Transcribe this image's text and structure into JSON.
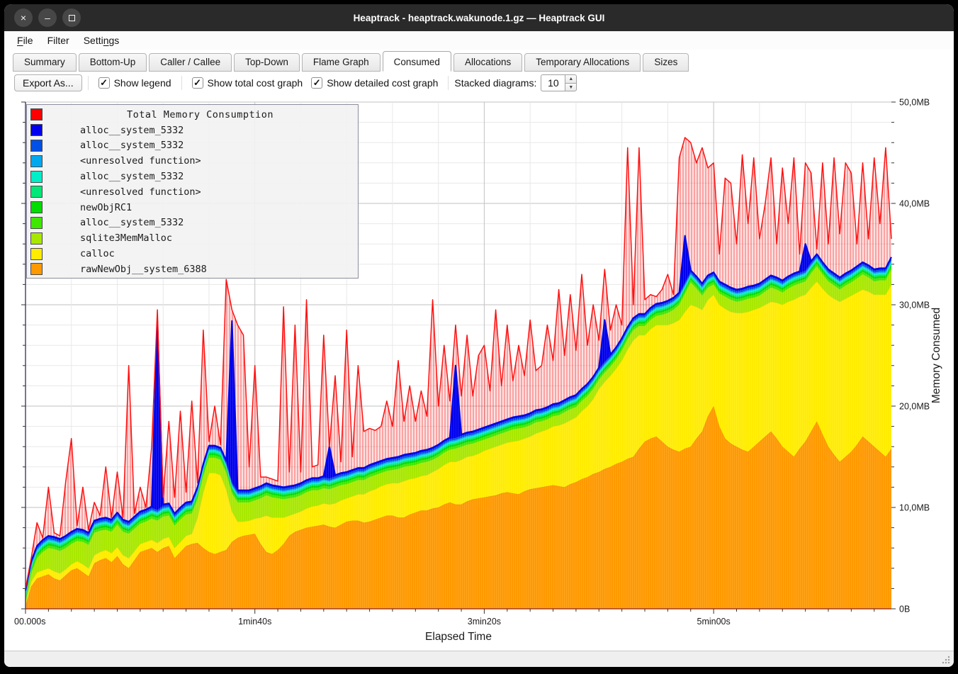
{
  "window": {
    "title": "Heaptrack - heaptrack.wakunode.1.gz — Heaptrack GUI",
    "controls": {
      "close": "×",
      "minimize": "–",
      "maximize": ""
    }
  },
  "menu": {
    "items": [
      {
        "label": "File",
        "underline": 0
      },
      {
        "label": "Filter",
        "underline": -1
      },
      {
        "label": "Settings",
        "underline": 5
      }
    ]
  },
  "tabs": {
    "items": [
      "Summary",
      "Bottom-Up",
      "Caller / Callee",
      "Top-Down",
      "Flame Graph",
      "Consumed",
      "Allocations",
      "Temporary Allocations",
      "Sizes"
    ],
    "active": "Consumed"
  },
  "toolbar": {
    "export_label": "Export As...",
    "checkboxes": [
      {
        "label": "Show legend",
        "checked": true
      },
      {
        "label": "Show total cost graph",
        "checked": true
      },
      {
        "label": "Show detailed cost graph",
        "checked": true
      }
    ],
    "stacked_label": "Stacked diagrams:",
    "stacked_value": "10"
  },
  "chart_data": {
    "type": "area",
    "title": "Total Memory Consumption",
    "xlabel": "Elapsed Time",
    "ylabel": "Memory Consumed",
    "grid": true,
    "legend_position": "top-left",
    "x_start": 0,
    "x_step_s": 2.5,
    "n": 152,
    "xlim_s": [
      0,
      377.5
    ],
    "ylim_mb": [
      0,
      50
    ],
    "y_ticks": [
      {
        "label": "0B",
        "mb": 0
      },
      {
        "label": "10,0MB",
        "mb": 10
      },
      {
        "label": "20,0MB",
        "mb": 20
      },
      {
        "label": "30,0MB",
        "mb": 30
      },
      {
        "label": "40,0MB",
        "mb": 40
      },
      {
        "label": "50,0MB",
        "mb": 50
      }
    ],
    "y_minor_step_mb": 2,
    "x_ticks": [
      {
        "label": "00.000s",
        "t": 0
      },
      {
        "label": "1min40s",
        "t": 100
      },
      {
        "label": "3min20s",
        "t": 200
      },
      {
        "label": "5min00s",
        "t": 300
      }
    ],
    "x_minor_step_s": 10,
    "x_grid_step_s": 20,
    "total_series": {
      "name": "Total Memory Consumption",
      "color": "#ff0000",
      "values_mb": [
        2.0,
        5.0,
        8.5,
        7.0,
        12.0,
        7.5,
        7.2,
        12.5,
        16.8,
        8.2,
        12.0,
        7.8,
        10.5,
        9.2,
        14.0,
        9.0,
        13.5,
        9.0,
        24.0,
        9.4,
        12.0,
        10.0,
        16.0,
        29.5,
        11.0,
        18.5,
        11.0,
        19.5,
        11.5,
        20.5,
        12.4,
        27.5,
        16.5,
        20.0,
        16.2,
        32.5,
        29.5,
        28.0,
        27.0,
        14.0,
        24.0,
        13.0,
        13.0,
        12.8,
        12.6,
        29.8,
        13.5,
        28.0,
        13.5,
        30.5,
        14.0,
        14.2,
        27.0,
        16.0,
        23.0,
        14.5,
        27.5,
        15.0,
        24.0,
        17.5,
        17.8,
        17.6,
        18.0,
        20.5,
        18.0,
        24.5,
        18.5,
        22.0,
        18.5,
        21.5,
        19.0,
        30.5,
        20.0,
        26.0,
        20.5,
        28.0,
        21.0,
        27.0,
        21.0,
        25.0,
        26.0,
        21.5,
        29.5,
        22.0,
        28.0,
        22.5,
        26.0,
        23.0,
        28.5,
        23.5,
        24.0,
        28.0,
        24.5,
        31.5,
        25.0,
        31.0,
        25.5,
        33.0,
        26.0,
        30.0,
        26.5,
        33.5,
        27.5,
        30.0,
        28.0,
        45.5,
        30.0,
        45.5,
        30.5,
        31.0,
        30.8,
        31.5,
        33.0,
        31.0,
        44.5,
        46.5,
        46.0,
        44.0,
        45.5,
        43.5,
        44.0,
        35.0,
        42.5,
        42.0,
        36.0,
        44.8,
        38.0,
        44.5,
        36.5,
        40.0,
        44.5,
        36.0,
        43.5,
        38.0,
        44.5,
        35.0,
        44.0,
        43.0,
        35.5,
        44.0,
        36.0,
        44.5,
        37.0,
        44.0,
        43.0,
        36.0,
        44.0,
        36.5,
        44.5,
        38.0,
        45.5,
        36.5
      ]
    },
    "stacked_series_bottom_up": [
      {
        "name": "rawNewObj__system_6388",
        "color": "#ff9900",
        "edge": "#ef8300",
        "values_mb": [
          0.3,
          2.2,
          3.0,
          3.2,
          3.4,
          3.0,
          2.8,
          3.3,
          3.8,
          4.0,
          3.6,
          3.2,
          4.5,
          4.8,
          5.0,
          4.6,
          5.2,
          4.4,
          4.0,
          4.8,
          5.6,
          5.8,
          6.0,
          5.6,
          6.0,
          6.2,
          5.0,
          5.6,
          6.2,
          6.4,
          6.5,
          6.0,
          5.6,
          5.4,
          5.6,
          5.8,
          6.6,
          7.0,
          7.2,
          7.3,
          7.4,
          6.4,
          5.6,
          5.4,
          5.8,
          6.4,
          7.2,
          7.6,
          7.8,
          8.0,
          8.1,
          8.2,
          8.3,
          8.1,
          8.0,
          8.3,
          8.6,
          8.7,
          8.7,
          8.5,
          8.6,
          8.8,
          9.0,
          9.2,
          9.2,
          9.0,
          9.0,
          9.3,
          9.5,
          9.7,
          9.7,
          9.9,
          10.0,
          10.3,
          10.5,
          10.3,
          10.3,
          10.6,
          10.8,
          10.9,
          11.0,
          11.1,
          11.2,
          11.4,
          11.5,
          11.4,
          11.3,
          11.6,
          11.8,
          11.9,
          12.0,
          12.1,
          12.2,
          12.1,
          12.0,
          12.3,
          12.5,
          12.8,
          13.0,
          13.3,
          13.5,
          13.8,
          14.0,
          14.3,
          14.5,
          14.8,
          15.0,
          15.8,
          16.5,
          16.8,
          17.0,
          16.5,
          16.0,
          15.7,
          15.5,
          15.8,
          16.0,
          16.8,
          17.5,
          19.0,
          20.0,
          18.0,
          16.8,
          16.3,
          16.0,
          15.7,
          15.5,
          16.0,
          16.5,
          17.0,
          17.5,
          16.8,
          16.0,
          15.5,
          15.0,
          15.8,
          16.5,
          17.5,
          18.5,
          17.2,
          16.0,
          15.2,
          14.5,
          15.0,
          15.5,
          16.2,
          17.0,
          16.5,
          16.0,
          15.5,
          15.0,
          15.8
        ]
      },
      {
        "name": "calloc",
        "color": "#ffec00",
        "edge": "#f2d600",
        "values_mb": [
          0.2,
          0.5,
          0.6,
          0.6,
          0.6,
          0.7,
          0.7,
          0.6,
          0.6,
          0.7,
          0.8,
          0.8,
          0.8,
          0.8,
          0.8,
          0.9,
          0.9,
          0.9,
          1.0,
          0.9,
          0.8,
          0.8,
          0.8,
          0.9,
          0.9,
          0.9,
          1.0,
          1.0,
          1.0,
          1.0,
          2.5,
          5.5,
          7.8,
          8.0,
          7.6,
          6.0,
          3.0,
          1.6,
          1.4,
          1.4,
          1.5,
          2.6,
          3.6,
          3.6,
          3.2,
          2.6,
          2.0,
          1.8,
          1.8,
          1.9,
          2.0,
          2.0,
          2.1,
          2.2,
          2.4,
          2.4,
          2.3,
          2.4,
          2.6,
          2.8,
          3.0,
          3.0,
          3.1,
          3.1,
          3.2,
          3.4,
          3.6,
          3.5,
          3.4,
          3.4,
          3.5,
          3.6,
          3.8,
          3.9,
          4.0,
          4.2,
          4.4,
          4.4,
          4.3,
          4.4,
          4.6,
          4.7,
          4.8,
          4.8,
          4.9,
          5.1,
          5.3,
          5.2,
          5.2,
          5.4,
          5.5,
          5.6,
          5.8,
          6.0,
          6.3,
          6.3,
          6.4,
          6.7,
          7.0,
          7.4,
          8.2,
          8.6,
          9.0,
          9.4,
          10.0,
          10.8,
          11.5,
          11.2,
          10.5,
          10.8,
          11.0,
          11.5,
          12.0,
          12.5,
          13.0,
          13.5,
          14.0,
          13.0,
          12.0,
          11.5,
          11.0,
          12.0,
          12.8,
          13.0,
          13.2,
          13.5,
          13.8,
          13.5,
          13.2,
          13.0,
          12.8,
          13.4,
          14.0,
          14.8,
          15.5,
          15.0,
          14.5,
          14.2,
          13.8,
          14.4,
          15.0,
          15.4,
          15.8,
          15.6,
          15.4,
          15.0,
          14.5,
          14.8,
          15.0,
          15.5,
          16.0,
          16.2
        ]
      },
      {
        "name": "sqlite3MemMalloc",
        "color": "#a8e800",
        "edge": "",
        "values_mb": [
          0.1,
          0.8,
          1.4,
          1.8,
          2.0,
          2.2,
          2.2,
          2.1,
          2.0,
          2.0,
          2.2,
          2.3,
          2.2,
          2.1,
          2.0,
          2.1,
          2.2,
          2.3,
          2.4,
          2.2,
          2.0,
          2.0,
          2.1,
          2.2,
          2.2,
          2.1,
          2.2,
          2.2,
          2.1,
          2.0,
          1.8,
          1.6,
          1.5,
          1.5,
          1.5,
          1.6,
          1.8,
          1.9,
          1.9,
          1.8,
          1.8,
          1.9,
          2.0,
          2.0,
          1.9,
          1.8,
          1.7,
          1.6,
          1.6,
          1.6,
          1.6,
          1.5,
          1.5,
          1.5,
          1.6,
          1.5,
          1.4,
          1.4,
          1.4,
          1.4,
          1.4,
          1.4,
          1.3,
          1.3,
          1.3,
          1.4,
          1.4,
          1.3,
          1.3,
          1.3,
          1.3,
          1.2,
          1.2,
          1.2,
          1.2,
          1.3,
          1.3,
          1.2,
          1.2,
          1.2,
          1.1,
          1.1,
          1.1,
          1.1,
          1.1,
          1.2,
          1.2,
          1.1,
          1.1,
          1.1,
          1.0,
          1.0,
          1.0,
          1.0,
          1.1,
          1.1,
          1.0,
          1.0,
          1.0,
          1.0,
          0.9,
          0.9,
          0.9,
          0.9,
          1.0,
          1.0,
          1.0,
          0.9,
          0.9,
          0.9,
          0.9,
          1.0,
          1.2,
          1.3,
          1.5,
          1.8,
          2.2,
          1.8,
          1.4,
          1.2,
          1.0,
          1.1,
          1.2,
          1.2,
          1.1,
          1.2,
          1.3,
          1.2,
          1.2,
          1.3,
          1.4,
          1.3,
          1.2,
          1.3,
          1.4,
          1.3,
          1.3,
          1.4,
          1.5,
          1.4,
          1.3,
          1.3,
          1.2,
          1.3,
          1.3,
          1.4,
          1.5,
          1.4,
          1.3,
          1.4,
          1.4,
          1.5
        ]
      },
      {
        "name": "alloc__system_5332",
        "color": "#3fe800",
        "thickness_mb": 0.25
      },
      {
        "name": "newObjRC1",
        "color": "#00dd00",
        "thickness_mb": 0.2
      },
      {
        "name": "<unresolved function>",
        "color": "#00e878",
        "thickness_mb": 0.15
      },
      {
        "name": "alloc__system_5332",
        "color": "#00eec8",
        "thickness_mb": 0.15
      },
      {
        "name": "<unresolved function>",
        "color": "#00a8f0",
        "thickness_mb": 0.12
      },
      {
        "name": "alloc__system_5332",
        "color": "#0050e8",
        "thickness_mb": 0.18
      },
      {
        "name": "alloc__system_5332",
        "color": "#0000ee",
        "thickness_mb": 0.15,
        "spikes_mb": {
          "23": 18.5,
          "36": 15.8,
          "53": 3.0,
          "75": 7.0,
          "101": 4.0,
          "115": 4.5,
          "136": 2.5
        }
      }
    ]
  }
}
